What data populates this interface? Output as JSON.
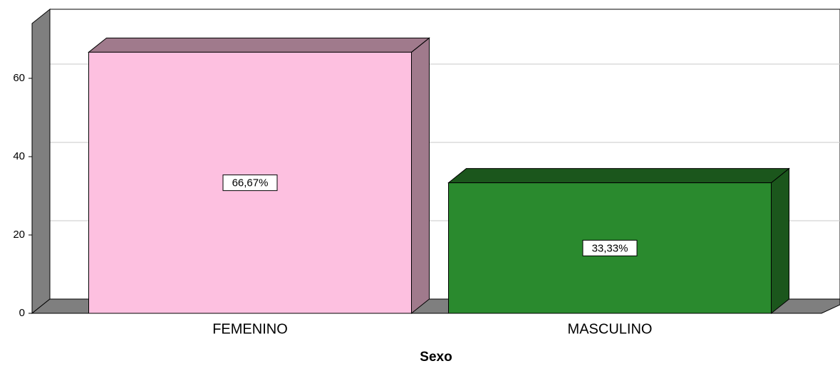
{
  "chart_data": {
    "type": "bar3d",
    "x_label": "Sexo",
    "categories": [
      "FEMENINO",
      "MASCULINO"
    ],
    "values": [
      66.67,
      33.33
    ],
    "value_labels": [
      "66,67%",
      "33,33%"
    ],
    "colors": [
      "#fdc0e0",
      "#2a8a2e"
    ],
    "side_colors": [
      "#a07a8c",
      "#1b561c"
    ],
    "ylim": [
      0,
      74
    ],
    "yticks": [
      0,
      20,
      40,
      60
    ],
    "grid": true
  }
}
